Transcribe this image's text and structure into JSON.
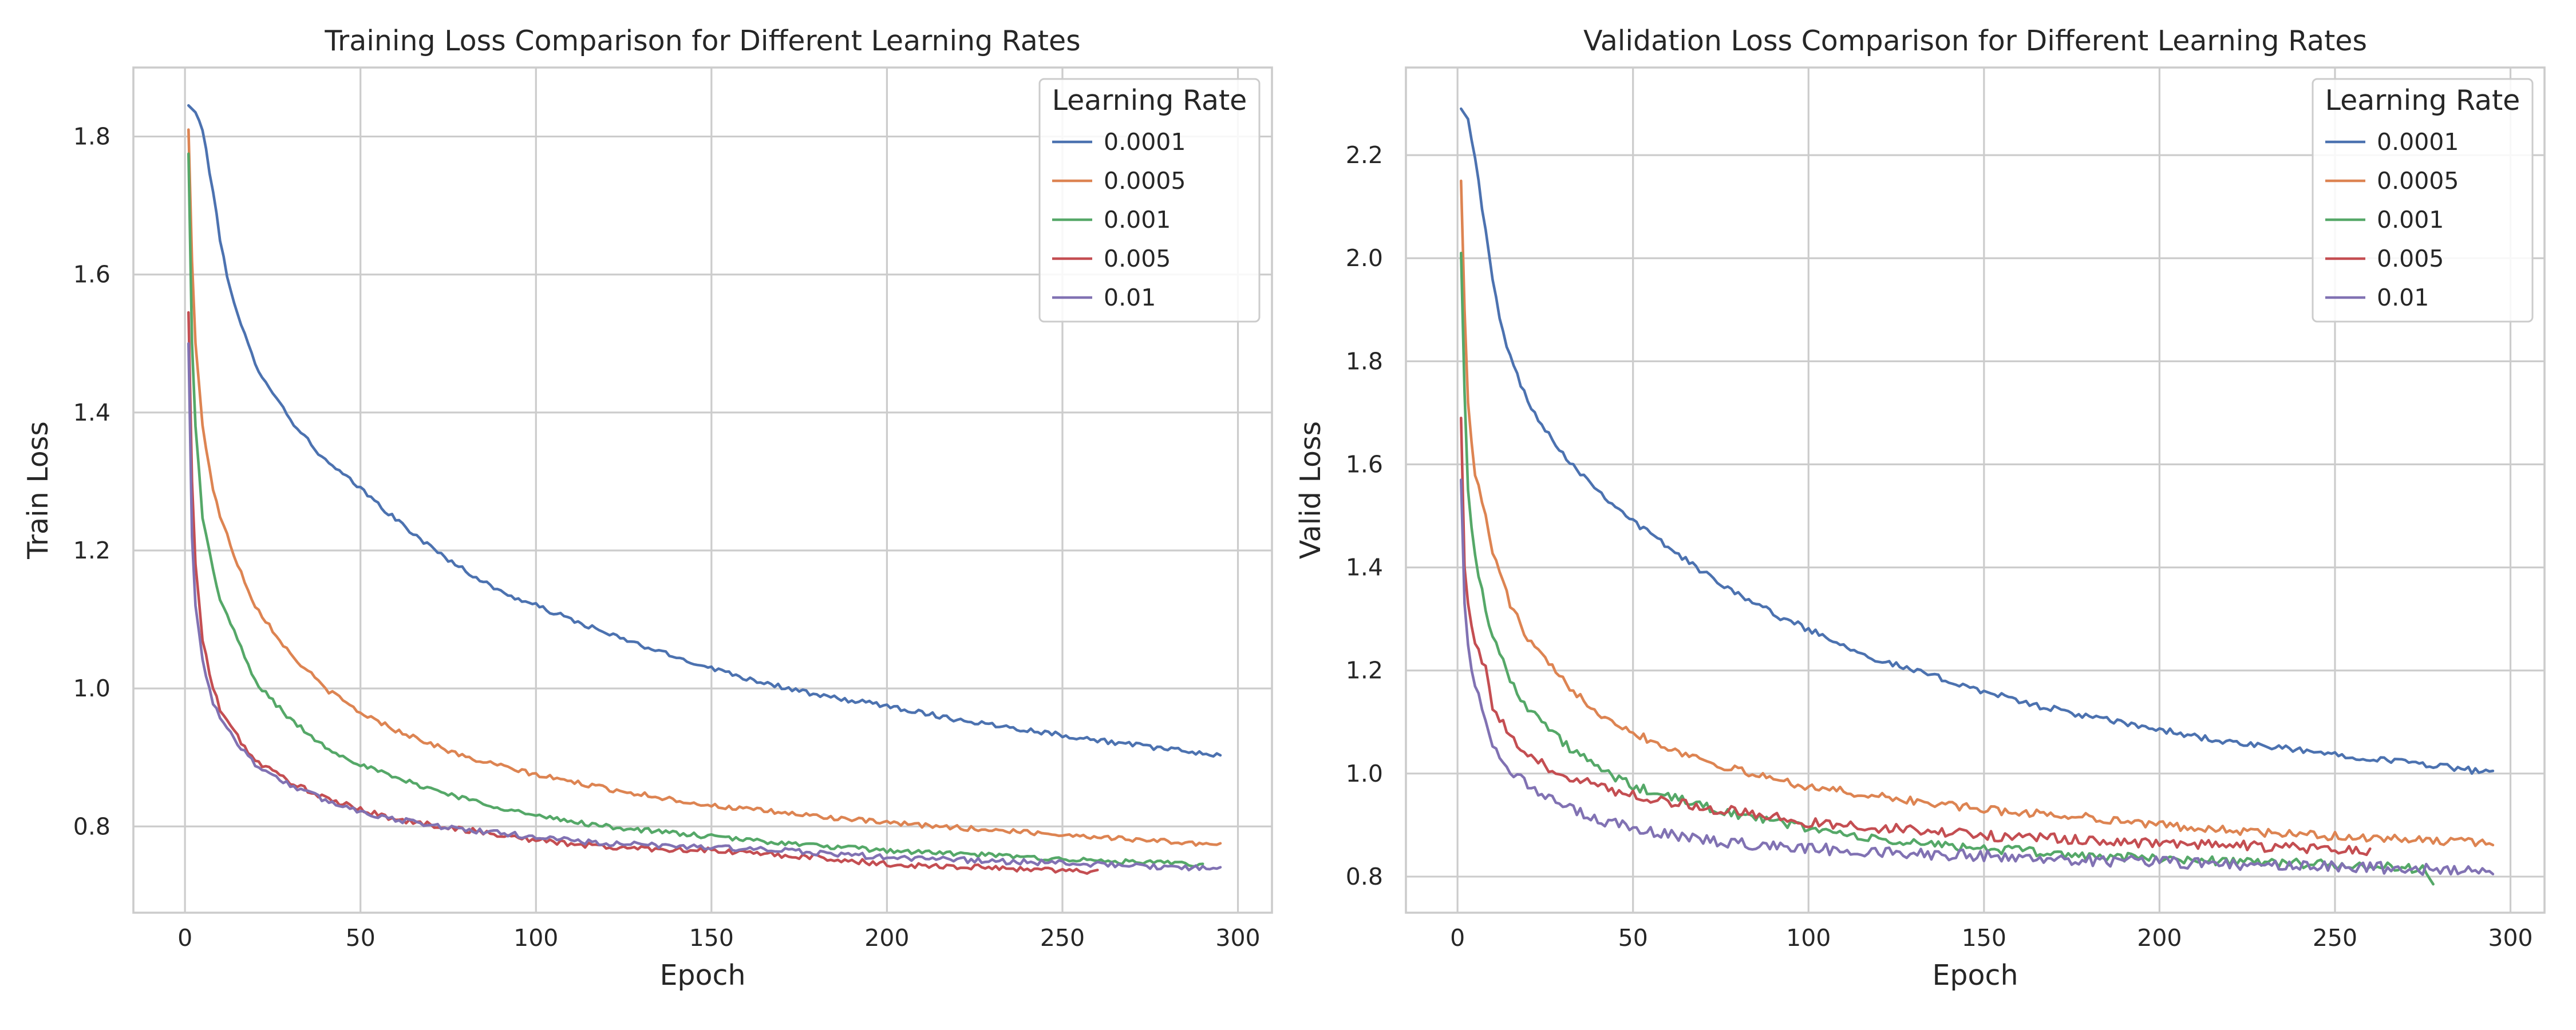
{
  "chart_data": [
    {
      "type": "line",
      "title": "Training Loss Comparison for Different Learning Rates",
      "xlabel": "Epoch",
      "ylabel": "Train Loss",
      "xlim": [
        -14.7,
        309.7
      ],
      "ylim": [
        0.675,
        1.9
      ],
      "xticks": [
        0,
        50,
        100,
        150,
        200,
        250,
        300
      ],
      "yticks": [
        0.8,
        1.0,
        1.2,
        1.4,
        1.6,
        1.8
      ],
      "grid": true,
      "legend": {
        "title": "Learning Rate",
        "placement": "top-right"
      },
      "series": [
        {
          "name": "0.0001",
          "color": "#4c72b0",
          "noise": 0.0035,
          "x": [
            1,
            3,
            5,
            8,
            10,
            12,
            15,
            20,
            25,
            30,
            40,
            50,
            60,
            70,
            80,
            90,
            100,
            120,
            140,
            160,
            180,
            200,
            220,
            240,
            260,
            280,
            295
          ],
          "y": [
            1.845,
            1.835,
            1.81,
            1.72,
            1.65,
            1.6,
            1.54,
            1.47,
            1.43,
            1.39,
            1.33,
            1.29,
            1.245,
            1.205,
            1.17,
            1.14,
            1.12,
            1.08,
            1.045,
            1.015,
            0.99,
            0.975,
            0.955,
            0.94,
            0.925,
            0.912,
            0.903
          ]
        },
        {
          "name": "0.0005",
          "color": "#dd8452",
          "noise": 0.0035,
          "x": [
            1,
            2,
            3,
            5,
            8,
            10,
            15,
            20,
            30,
            40,
            50,
            60,
            80,
            100,
            120,
            150,
            180,
            200,
            230,
            260,
            295
          ],
          "y": [
            1.81,
            1.62,
            1.5,
            1.38,
            1.29,
            1.25,
            1.18,
            1.12,
            1.05,
            1.0,
            0.965,
            0.94,
            0.9,
            0.875,
            0.855,
            0.83,
            0.815,
            0.805,
            0.795,
            0.785,
            0.773
          ]
        },
        {
          "name": "0.001",
          "color": "#55a868",
          "noise": 0.0035,
          "x": [
            1,
            2,
            3,
            5,
            8,
            10,
            15,
            20,
            30,
            40,
            50,
            60,
            80,
            100,
            120,
            150,
            180,
            200,
            230,
            260,
            290
          ],
          "y": [
            1.775,
            1.5,
            1.38,
            1.25,
            1.17,
            1.13,
            1.07,
            1.01,
            0.955,
            0.915,
            0.89,
            0.87,
            0.84,
            0.815,
            0.8,
            0.785,
            0.772,
            0.765,
            0.758,
            0.75,
            0.745
          ]
        },
        {
          "name": "0.005",
          "color": "#c44e52",
          "noise": 0.004,
          "x": [
            1,
            2,
            3,
            5,
            8,
            10,
            15,
            20,
            30,
            40,
            50,
            60,
            80,
            100,
            120,
            150,
            180,
            200,
            230,
            260
          ],
          "y": [
            1.545,
            1.3,
            1.18,
            1.07,
            1.0,
            0.97,
            0.93,
            0.895,
            0.865,
            0.84,
            0.825,
            0.81,
            0.795,
            0.78,
            0.77,
            0.765,
            0.755,
            0.745,
            0.74,
            0.735
          ]
        },
        {
          "name": "0.01",
          "color": "#8172b3",
          "noise": 0.004,
          "x": [
            1,
            2,
            3,
            5,
            8,
            10,
            15,
            20,
            30,
            40,
            50,
            60,
            80,
            100,
            120,
            150,
            180,
            200,
            230,
            260,
            295
          ],
          "y": [
            1.5,
            1.22,
            1.12,
            1.04,
            0.98,
            0.96,
            0.92,
            0.89,
            0.86,
            0.838,
            0.822,
            0.81,
            0.795,
            0.785,
            0.775,
            0.77,
            0.762,
            0.755,
            0.75,
            0.745,
            0.738
          ]
        }
      ]
    },
    {
      "type": "line",
      "title": "Validation Loss Comparison for Different Learning Rates",
      "xlabel": "Epoch",
      "ylabel": "Valid Loss",
      "xlim": [
        -14.7,
        309.7
      ],
      "ylim": [
        0.73,
        2.37
      ],
      "xticks": [
        0,
        50,
        100,
        150,
        200,
        250,
        300
      ],
      "yticks": [
        0.8,
        1.0,
        1.2,
        1.4,
        1.6,
        1.8,
        2.0,
        2.2
      ],
      "grid": true,
      "legend": {
        "title": "Learning Rate",
        "placement": "top-right"
      },
      "series": [
        {
          "name": "0.0001",
          "color": "#4c72b0",
          "noise": 0.006,
          "x": [
            1,
            3,
            5,
            8,
            10,
            12,
            15,
            20,
            25,
            30,
            40,
            50,
            60,
            70,
            80,
            90,
            100,
            120,
            140,
            160,
            180,
            200,
            220,
            240,
            260,
            280,
            295
          ],
          "y": [
            2.29,
            2.27,
            2.2,
            2.05,
            1.96,
            1.88,
            1.81,
            1.72,
            1.67,
            1.62,
            1.55,
            1.49,
            1.44,
            1.39,
            1.35,
            1.31,
            1.28,
            1.22,
            1.18,
            1.14,
            1.11,
            1.085,
            1.06,
            1.045,
            1.03,
            1.015,
            1.0
          ]
        },
        {
          "name": "0.0005",
          "color": "#dd8452",
          "noise": 0.008,
          "x": [
            1,
            2,
            3,
            5,
            8,
            10,
            15,
            20,
            30,
            40,
            50,
            60,
            80,
            100,
            120,
            150,
            180,
            200,
            230,
            260,
            295
          ],
          "y": [
            2.15,
            1.9,
            1.72,
            1.58,
            1.5,
            1.43,
            1.33,
            1.26,
            1.18,
            1.12,
            1.08,
            1.05,
            1.005,
            0.975,
            0.955,
            0.93,
            0.915,
            0.9,
            0.885,
            0.875,
            0.865
          ]
        },
        {
          "name": "0.001",
          "color": "#55a868",
          "noise": 0.009,
          "x": [
            1,
            2,
            3,
            5,
            8,
            10,
            15,
            20,
            30,
            40,
            50,
            60,
            80,
            100,
            120,
            150,
            180,
            200,
            230,
            260,
            275,
            278
          ],
          "y": [
            2.01,
            1.74,
            1.55,
            1.42,
            1.32,
            1.27,
            1.18,
            1.13,
            1.06,
            1.01,
            0.975,
            0.955,
            0.92,
            0.895,
            0.87,
            0.855,
            0.84,
            0.835,
            0.828,
            0.82,
            0.815,
            0.79
          ]
        },
        {
          "name": "0.005",
          "color": "#c44e52",
          "noise": 0.01,
          "x": [
            1,
            2,
            3,
            5,
            8,
            10,
            15,
            20,
            30,
            40,
            50,
            60,
            80,
            100,
            120,
            150,
            180,
            200,
            230,
            260
          ],
          "y": [
            1.69,
            1.4,
            1.33,
            1.26,
            1.2,
            1.13,
            1.07,
            1.03,
            1.0,
            0.975,
            0.96,
            0.945,
            0.925,
            0.905,
            0.895,
            0.88,
            0.87,
            0.865,
            0.858,
            0.85
          ]
        },
        {
          "name": "0.01",
          "color": "#8172b3",
          "noise": 0.011,
          "x": [
            1,
            2,
            3,
            5,
            8,
            10,
            15,
            20,
            30,
            40,
            50,
            60,
            80,
            100,
            120,
            150,
            180,
            200,
            230,
            260,
            295
          ],
          "y": [
            1.57,
            1.33,
            1.25,
            1.17,
            1.1,
            1.06,
            1.01,
            0.975,
            0.935,
            0.91,
            0.895,
            0.88,
            0.865,
            0.855,
            0.848,
            0.84,
            0.832,
            0.828,
            0.822,
            0.818,
            0.81
          ]
        }
      ]
    }
  ]
}
